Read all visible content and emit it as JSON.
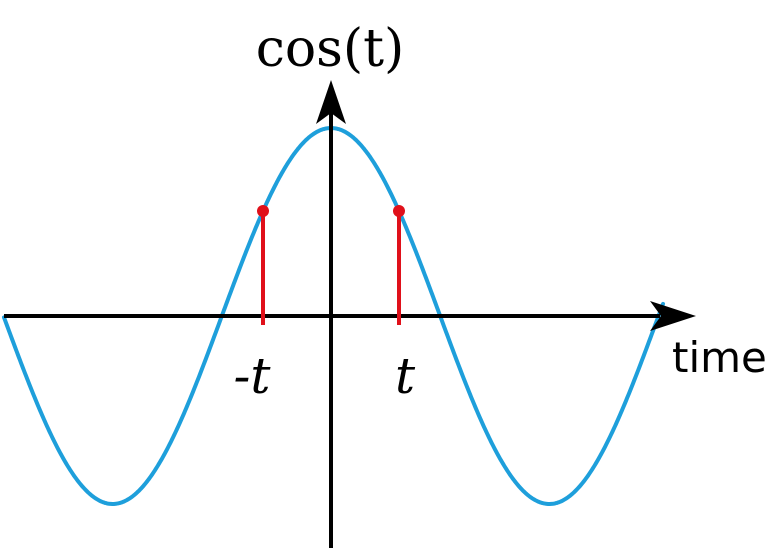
{
  "diagram": {
    "y_axis_label": "cos(t)",
    "x_axis_label": "time",
    "markers": [
      {
        "label": "-t",
        "t": -1
      },
      {
        "label": "t",
        "t": 1
      }
    ]
  },
  "colors": {
    "curve": "#1e9fdb",
    "marker": "#e0101a",
    "axis": "#000000"
  }
}
